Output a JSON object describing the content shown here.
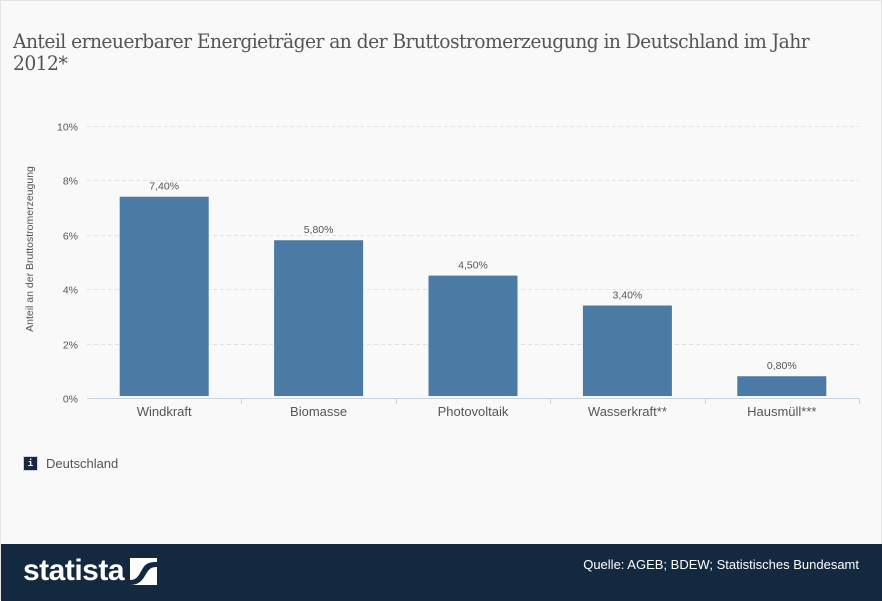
{
  "header": {
    "title": "Anteil erneuerbarer Energieträger an der Bruttostromerzeugung in Deutschland im Jahr 2012*"
  },
  "legend": {
    "icon": "info-icon",
    "icon_glyph": "i",
    "label": "Deutschland"
  },
  "footer": {
    "logo_text": "statista",
    "logo_icon": "statista-logo-icon",
    "source": "Quelle: AGEB; BDEW; Statistisches Bundesamt"
  },
  "colors": {
    "bar": "#4b7ba4",
    "footer_bg": "#132940",
    "grid": "#e2e2e2",
    "axis": "#c7d3df",
    "text": "#555555"
  },
  "chart_data": {
    "type": "bar",
    "title": "Anteil erneuerbarer Energieträger an der Bruttostromerzeugung in Deutschland im Jahr 2012*",
    "xlabel": "",
    "ylabel": "Anteil an der Bruttostromerzeugung",
    "categories": [
      "Windkraft",
      "Biomasse",
      "Photovoltaik",
      "Wasserkraft**",
      "Hausmüll***"
    ],
    "series": [
      {
        "name": "Deutschland",
        "values": [
          7.4,
          5.8,
          4.5,
          3.4,
          0.8
        ],
        "labels": [
          "7,40%",
          "5,80%",
          "4,50%",
          "3,40%",
          "0,80%"
        ]
      }
    ],
    "ylim": [
      0,
      10
    ],
    "yticks": [
      0,
      2,
      4,
      6,
      8,
      10
    ],
    "ytick_labels": [
      "0%",
      "2%",
      "4%",
      "6%",
      "8%",
      "10%"
    ],
    "grid": true,
    "legend_position": "bottom-left"
  }
}
